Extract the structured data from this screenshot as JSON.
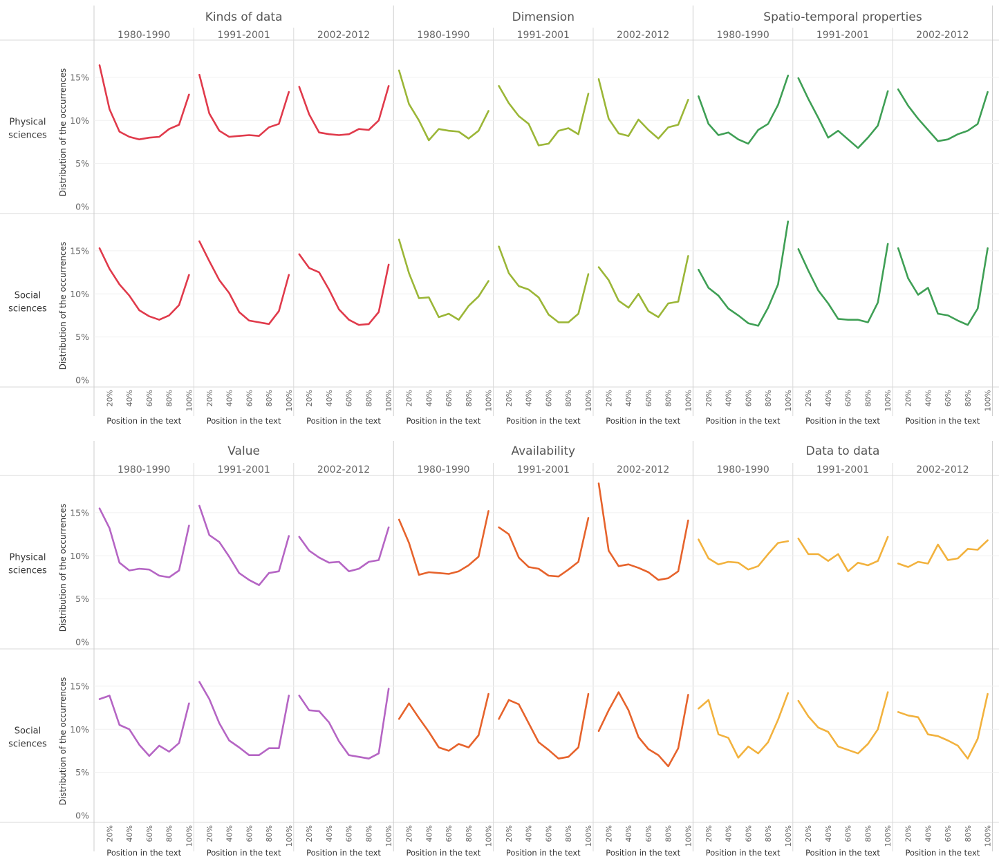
{
  "chart_data": [
    {
      "type": "line",
      "x_label": "Position in the text",
      "y_label": "Distribution of the occurrences",
      "x_ticks": [
        "20%",
        "40%",
        "60%",
        "80%",
        "100%"
      ],
      "y_ticks": [
        "0%",
        "5%",
        "10%",
        "15%"
      ],
      "ylim": [
        0,
        19
      ],
      "x": [
        10,
        20,
        30,
        40,
        50,
        60,
        70,
        80,
        90,
        100
      ],
      "groups": [
        {
          "title": "Kinds of data",
          "color": "#e03a4b"
        },
        {
          "title": "Dimension",
          "color": "#9bb637"
        },
        {
          "title": "Spatio-temporal properties",
          "color": "#3f9f55"
        }
      ],
      "periods": [
        "1980-1990",
        "1991-2001",
        "2002-2012"
      ],
      "rows": [
        {
          "label_line1": "Physical",
          "label_line2": "sciences"
        },
        {
          "label_line1": "Social",
          "label_line2": "sciences"
        }
      ],
      "series": [
        [
          [
            [
              16.4,
              11.3,
              8.7,
              8.1,
              7.8,
              8.0,
              8.1,
              9.0,
              9.5,
              13.0
            ],
            [
              15.3,
              10.8,
              8.8,
              8.1,
              8.2,
              8.3,
              8.2,
              9.2,
              9.6,
              13.3
            ],
            [
              13.9,
              10.7,
              8.6,
              8.4,
              8.3,
              8.4,
              9.0,
              8.9,
              10.0,
              14.0
            ]
          ],
          [
            [
              15.8,
              11.9,
              10.0,
              7.7,
              9.0,
              8.8,
              8.7,
              7.9,
              8.8,
              11.1
            ],
            [
              14.0,
              12.0,
              10.5,
              9.6,
              7.1,
              7.3,
              8.8,
              9.1,
              8.4,
              13.1
            ],
            [
              14.8,
              10.2,
              8.5,
              8.2,
              10.1,
              8.9,
              7.9,
              9.2,
              9.5,
              12.4
            ]
          ],
          [
            [
              12.8,
              9.6,
              8.3,
              8.6,
              7.8,
              7.3,
              8.9,
              9.6,
              11.8,
              15.2
            ],
            [
              14.9,
              12.5,
              10.3,
              8.0,
              8.8,
              7.8,
              6.8,
              8.0,
              9.4,
              13.4
            ],
            [
              13.6,
              11.7,
              10.2,
              8.9,
              7.6,
              7.8,
              8.4,
              8.8,
              9.6,
              13.3
            ]
          ]
        ],
        [
          [
            [
              15.3,
              12.9,
              11.1,
              9.8,
              8.1,
              7.4,
              7.0,
              7.5,
              8.7,
              12.2
            ],
            [
              16.1,
              13.8,
              11.6,
              10.1,
              7.9,
              6.9,
              6.7,
              6.5,
              8.0,
              12.2
            ],
            [
              14.6,
              13.0,
              12.5,
              10.5,
              8.2,
              7.0,
              6.4,
              6.5,
              7.9,
              13.4
            ]
          ],
          [
            [
              16.3,
              12.4,
              9.5,
              9.6,
              7.3,
              7.7,
              7.0,
              8.6,
              9.7,
              11.5
            ],
            [
              15.5,
              12.4,
              10.9,
              10.5,
              9.6,
              7.6,
              6.7,
              6.7,
              7.7,
              12.3
            ],
            [
              13.1,
              11.6,
              9.2,
              8.4,
              10.0,
              8.0,
              7.3,
              8.9,
              9.1,
              14.4
            ]
          ],
          [
            [
              12.8,
              10.7,
              9.8,
              8.3,
              7.5,
              6.6,
              6.3,
              8.4,
              11.1,
              18.4
            ],
            [
              15.2,
              12.7,
              10.4,
              8.9,
              7.1,
              7.0,
              7.0,
              6.7,
              9.0,
              15.8
            ],
            [
              15.3,
              11.8,
              9.9,
              10.7,
              7.7,
              7.5,
              6.9,
              6.4,
              8.3,
              15.3
            ]
          ]
        ]
      ]
    },
    {
      "type": "line",
      "x_label": "Position in the text",
      "y_label": "Distribution of the occurrences",
      "x_ticks": [
        "20%",
        "40%",
        "60%",
        "80%",
        "100%"
      ],
      "y_ticks": [
        "0%",
        "5%",
        "10%",
        "15%"
      ],
      "ylim": [
        0,
        19
      ],
      "x": [
        10,
        20,
        30,
        40,
        50,
        60,
        70,
        80,
        90,
        100
      ],
      "groups": [
        {
          "title": "Value",
          "color": "#b565c4"
        },
        {
          "title": "Availability",
          "color": "#e6632c"
        },
        {
          "title": "Data to data",
          "color": "#f2b23e"
        }
      ],
      "periods": [
        "1980-1990",
        "1991-2001",
        "2002-2012"
      ],
      "rows": [
        {
          "label_line1": "Physical",
          "label_line2": "sciences"
        },
        {
          "label_line1": "Social",
          "label_line2": "sciences"
        }
      ],
      "series": [
        [
          [
            [
              15.5,
              13.2,
              9.2,
              8.3,
              8.5,
              8.4,
              7.7,
              7.5,
              8.3,
              13.5
            ],
            [
              15.8,
              12.4,
              11.6,
              9.9,
              8.0,
              7.2,
              6.6,
              8.0,
              8.2,
              12.3
            ],
            [
              12.2,
              10.6,
              9.8,
              9.2,
              9.3,
              8.2,
              8.5,
              9.3,
              9.5,
              13.3
            ]
          ],
          [
            [
              14.2,
              11.5,
              7.8,
              8.1,
              8.0,
              7.9,
              8.2,
              8.9,
              9.9,
              15.2
            ],
            [
              13.3,
              12.5,
              9.8,
              8.7,
              8.5,
              7.7,
              7.6,
              8.4,
              9.3,
              14.4
            ],
            [
              18.4,
              10.6,
              8.8,
              9.0,
              8.6,
              8.1,
              7.2,
              7.4,
              8.2,
              14.1
            ]
          ],
          [
            [
              11.9,
              9.7,
              9.0,
              9.3,
              9.2,
              8.4,
              8.8,
              10.2,
              11.5,
              11.7
            ],
            [
              12.0,
              10.2,
              10.2,
              9.4,
              10.2,
              8.2,
              9.2,
              8.9,
              9.4,
              12.2
            ],
            [
              9.1,
              8.7,
              9.3,
              9.1,
              11.3,
              9.5,
              9.7,
              10.8,
              10.7,
              11.8
            ]
          ]
        ],
        [
          [
            [
              13.5,
              13.9,
              10.5,
              10.0,
              8.2,
              6.9,
              8.1,
              7.4,
              8.4,
              13.0
            ],
            [
              15.5,
              13.5,
              10.7,
              8.7,
              7.9,
              7.0,
              7.0,
              7.8,
              7.8,
              13.9
            ],
            [
              13.9,
              12.2,
              12.1,
              10.8,
              8.6,
              7.0,
              6.8,
              6.6,
              7.2,
              14.7
            ]
          ],
          [
            [
              11.2,
              13.0,
              11.3,
              9.7,
              7.9,
              7.5,
              8.3,
              7.9,
              9.3,
              14.1
            ],
            [
              11.2,
              13.4,
              12.9,
              10.7,
              8.5,
              7.6,
              6.6,
              6.8,
              7.9,
              14.1
            ],
            [
              9.8,
              12.2,
              14.3,
              12.2,
              9.1,
              7.7,
              7.0,
              5.7,
              7.8,
              14.0
            ]
          ],
          [
            [
              12.4,
              13.4,
              9.4,
              9.0,
              6.7,
              8.0,
              7.2,
              8.5,
              11.1,
              14.2
            ],
            [
              13.3,
              11.5,
              10.2,
              9.7,
              8.0,
              7.6,
              7.2,
              8.3,
              10.0,
              14.3
            ],
            [
              12.0,
              11.6,
              11.4,
              9.4,
              9.2,
              8.7,
              8.1,
              6.6,
              8.9,
              14.1
            ]
          ]
        ]
      ]
    }
  ]
}
